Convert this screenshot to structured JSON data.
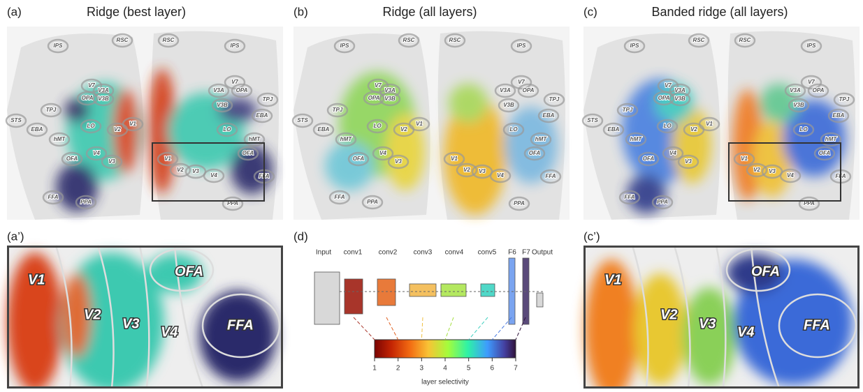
{
  "panels": [
    {
      "label": "(a)",
      "title": "Ridge (best layer)"
    },
    {
      "label": "(b)",
      "title": "Ridge (all layers)"
    },
    {
      "label": "(c)",
      "title": "Banded ridge (all layers)"
    },
    {
      "label": "(a’)"
    },
    {
      "label": "(d)"
    },
    {
      "label": "(c’)"
    }
  ],
  "left_rois": [
    "IPS",
    "RSC",
    "V7",
    "V3A",
    "OPA",
    "V3B",
    "TPJ",
    "LO",
    "V2",
    "V1",
    "STS",
    "EBA",
    "hMT",
    "V4",
    "OFA",
    "V3",
    "FFA",
    "PPA"
  ],
  "right_rois": [
    "RSC",
    "IPS",
    "V7",
    "V3A",
    "OPA",
    "V3B",
    "TPJ",
    "EBA",
    "LO",
    "hMT",
    "V1",
    "V2",
    "V3",
    "V4",
    "OFA",
    "FFA",
    "PPA"
  ],
  "zoom_rois": [
    "V1",
    "V2",
    "V3",
    "V4",
    "OFA",
    "FFA"
  ],
  "network": {
    "layers": [
      "Input",
      "conv1",
      "conv2",
      "conv3",
      "conv4",
      "conv5",
      "F6",
      "F7",
      "Output"
    ]
  },
  "colorbar": {
    "lim": [
      1,
      7
    ],
    "ticks": [
      1,
      2,
      3,
      4,
      5,
      6,
      7
    ],
    "label": "layer selectivity"
  }
}
